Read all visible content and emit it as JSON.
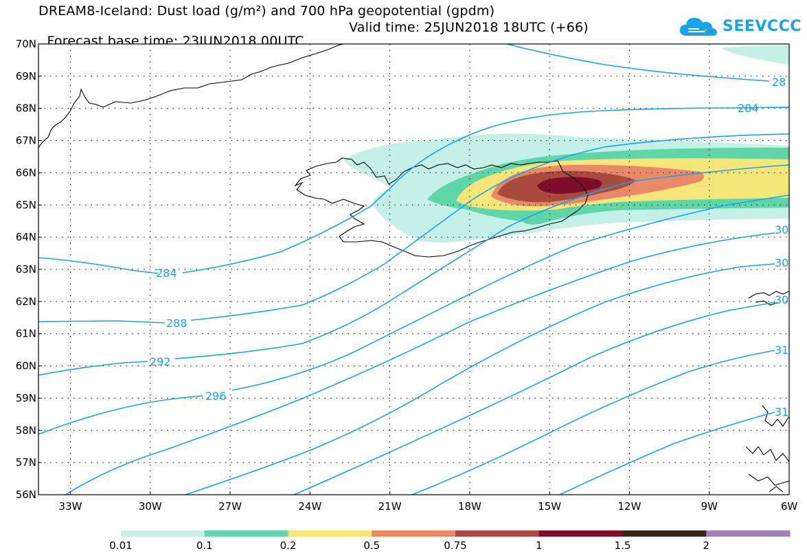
{
  "header": {
    "title_line1": "DREAM8-Iceland: Dust load (g/m²) and 700 hPa geopotential (gpdm)",
    "base_time": "Forecast base time: 23JUN2018 00UTC",
    "valid_time": "Valid time: 25JUN2018 18UTC (+66)"
  },
  "logo": {
    "text": "SEEVCCC",
    "icon": "cloud-icon",
    "color": "#1aa3e8"
  },
  "axes": {
    "lat_labels": [
      "70N",
      "69N",
      "68N",
      "67N",
      "66N",
      "65N",
      "64N",
      "63N",
      "62N",
      "61N",
      "60N",
      "59N",
      "58N",
      "57N",
      "56N"
    ],
    "lon_labels": [
      "33W",
      "30W",
      "27W",
      "24W",
      "21W",
      "18W",
      "15W",
      "12W",
      "9W",
      "6W"
    ],
    "lat_range": [
      56,
      70
    ],
    "lon_range": [
      -34.2,
      -6
    ]
  },
  "contours": {
    "color": "#1aa3e8",
    "labels": [
      "284",
      "288",
      "292",
      "296",
      "284",
      "28",
      "30",
      "30",
      "30",
      "31",
      "31"
    ]
  },
  "dust_colors": {
    "c001": "#c4f0e8",
    "c01": "#5fd6a9",
    "c02": "#f6e67a",
    "c05": "#e88a68",
    "c075": "#a84a3e",
    "c1": "#7e0d2c"
  },
  "legend": {
    "colors": [
      "#c4f0e8",
      "#5fd6a9",
      "#f6e67a",
      "#e88a68",
      "#a84a3e",
      "#7e0d2c",
      "#3a2416",
      "#a27fb8"
    ],
    "labels": [
      "0.01",
      "0.1",
      "0.2",
      "0.5",
      "0.75",
      "1",
      "1.5",
      "2"
    ]
  }
}
